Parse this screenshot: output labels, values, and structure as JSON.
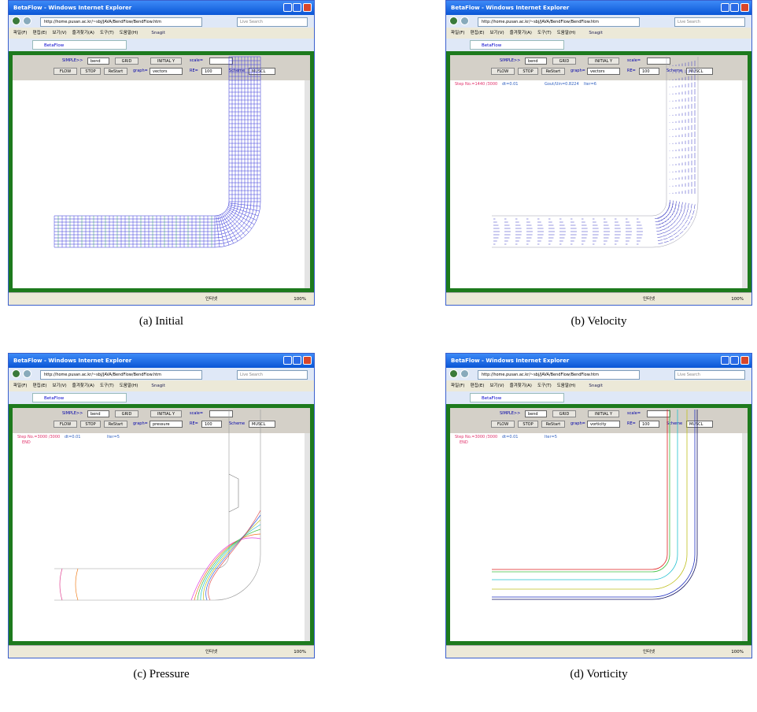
{
  "window": {
    "title": "BetaFlow - Windows Internet Explorer",
    "url": "http://home.pusan.ac.kr/~sbj/JAVA/BendFlow/BendFlow.htm",
    "search": "Live Search",
    "menu": [
      "파일(F)",
      "편집(E)",
      "보기(V)",
      "즐겨찾기(A)",
      "도구(T)",
      "도움말(H)"
    ],
    "snagit": "Snagit",
    "tab": "BetaFlow",
    "zone": "인터넷",
    "zoom": "100%"
  },
  "controls": {
    "simple": "SIMPLE>>",
    "model": "bend",
    "grid": "GRID",
    "initial": "INITIAL Y",
    "scale": "scale=",
    "flow": "FLOW",
    "stop": "STOP",
    "restart": "ReStart",
    "graph": "graph=",
    "re": "RE=",
    "re_value": "100",
    "scheme": "Scheme",
    "scheme_value": "MUSCL"
  },
  "panels": [
    {
      "caption": "(a) Initial",
      "graph_value": "vectors"
    },
    {
      "caption": "(b) Velocity",
      "graph_value": "vectors",
      "status": [
        "Step No.=1440 /3000",
        "dt=0.01",
        "Gout/Uin=0.8224",
        "Iter=6"
      ]
    },
    {
      "caption": "(c) Pressure",
      "graph_value": "pressure",
      "status": [
        "Step No.=3000 /3000",
        "dt=0.01",
        "Iter=5"
      ],
      "end": "END"
    },
    {
      "caption": "(d) Vorticity",
      "graph_value": "vorticity",
      "status": [
        "Step No.=3000 /3000",
        "dt=0.01",
        "Iter=5"
      ],
      "end": "END"
    }
  ]
}
